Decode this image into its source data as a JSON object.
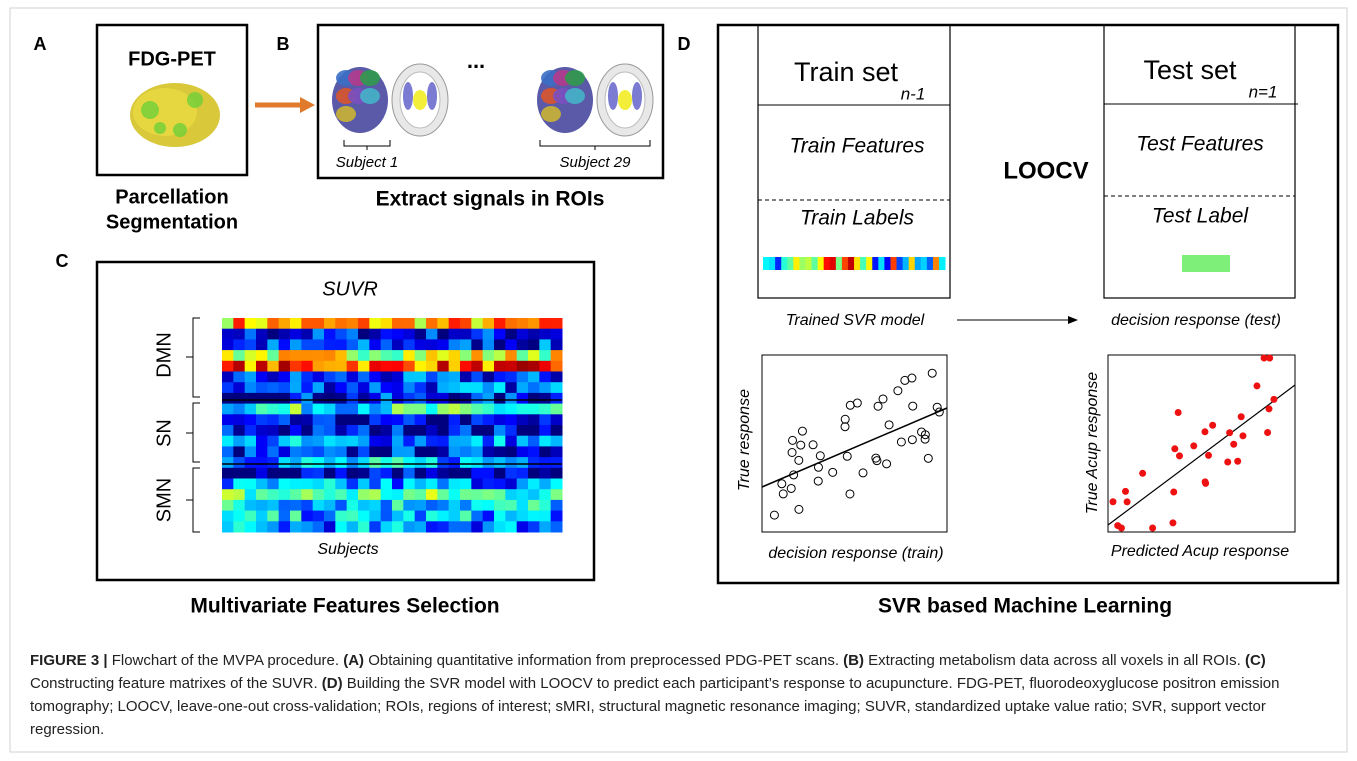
{
  "panels": {
    "a": {
      "label": "A",
      "title": "FDG-PET",
      "caption_lines": [
        "Parcellation",
        "Segmentation"
      ]
    },
    "b": {
      "label": "B",
      "ellipsis": "...",
      "subjects": [
        "Subject 1",
        "Subject 29"
      ],
      "caption": "Extract signals in ROIs"
    },
    "c": {
      "label": "C",
      "title": "SUVR",
      "networks": [
        "DMN",
        "SN",
        "SMN"
      ],
      "x_label": "Subjects",
      "caption": "Multivariate Features Selection"
    },
    "d": {
      "label": "D",
      "method": "LOOCV",
      "train": {
        "title": "Train set",
        "subscript": "n-1",
        "features": "Train Features",
        "labels": "Train Labels",
        "model": "Trained SVR model",
        "y_label": "True response",
        "x_label": "decision response (train)"
      },
      "test": {
        "title": "Test set",
        "subscript": "n=1",
        "features": "Test Features",
        "labels": "Test Label",
        "output": "decision response (test)",
        "y_label": "True Acup response",
        "x_label": "Predicted Acup response"
      },
      "caption": "SVR based Machine Learning"
    }
  },
  "caption": [
    {
      "text": "FIGURE 3 | ",
      "bold": true
    },
    {
      "text": "Flowchart of the MVPA procedure. ",
      "bold": false
    },
    {
      "text": "(A)",
      "bold": true
    },
    {
      "text": " Obtaining quantitative information from preprocessed PDG-PET scans. ",
      "bold": false
    },
    {
      "text": "(B)",
      "bold": true
    },
    {
      "text": " Extracting metabolism data across all voxels in all ROIs. ",
      "bold": false
    },
    {
      "text": "(C)",
      "bold": true
    },
    {
      "text": " Constructing feature matrixes of the SUVR. ",
      "bold": false
    },
    {
      "text": "(D)",
      "bold": true
    },
    {
      "text": " Building the SVR model with LOOCV to predict each participant’s response to acupuncture. FDG-PET, fluorodeoxyglucose positron emission tomography; LOOCV, leave-one-out cross-validation; ROIs, regions of interest; sMRI, structural magnetic resonance imaging; SUVR, standardized uptake value ratio; SVR, support vector regression.",
      "bold": false
    }
  ]
}
